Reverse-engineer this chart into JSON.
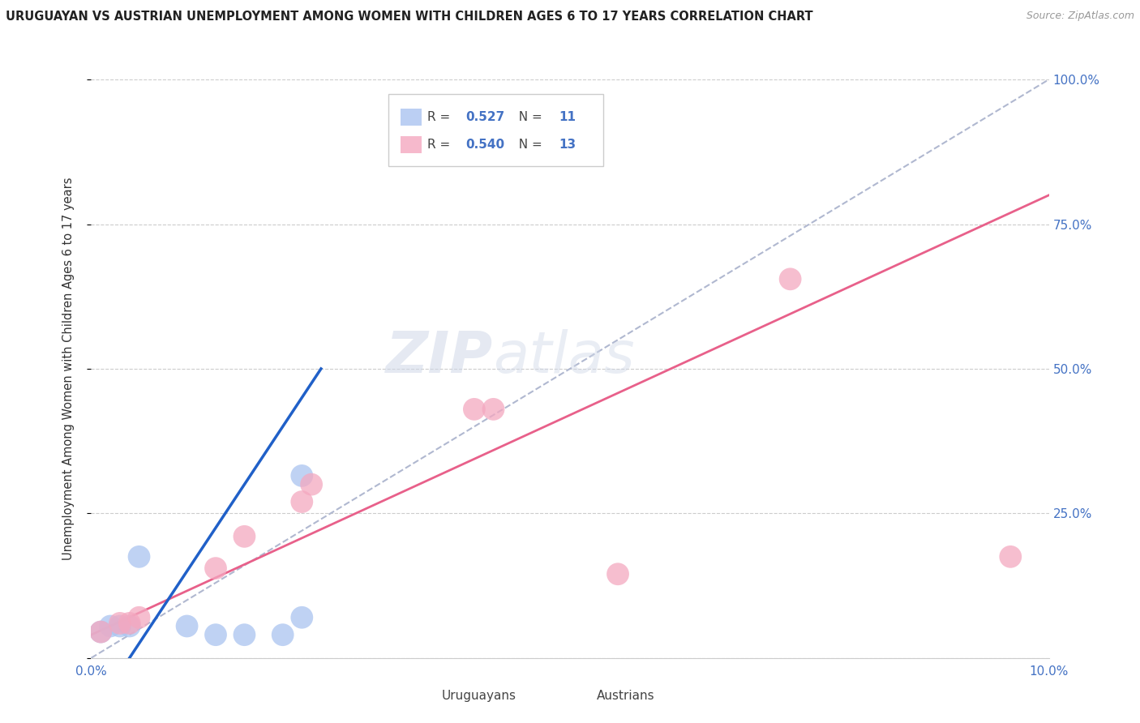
{
  "title": "URUGUAYAN VS AUSTRIAN UNEMPLOYMENT AMONG WOMEN WITH CHILDREN AGES 6 TO 17 YEARS CORRELATION CHART",
  "source": "Source: ZipAtlas.com",
  "ylabel": "Unemployment Among Women with Children Ages 6 to 17 years",
  "x_min": 0.0,
  "x_max": 0.1,
  "y_min": 0.0,
  "y_max": 1.0,
  "x_ticks": [
    0.0,
    0.02,
    0.04,
    0.06,
    0.08,
    0.1
  ],
  "x_tick_labels": [
    "0.0%",
    "",
    "",
    "",
    "",
    "10.0%"
  ],
  "y_ticks": [
    0.0,
    0.25,
    0.5,
    0.75,
    1.0
  ],
  "y_tick_labels_right": [
    "",
    "25.0%",
    "50.0%",
    "75.0%",
    "100.0%"
  ],
  "legend_R_uruguayan": "0.527",
  "legend_N_uruguayan": "11",
  "legend_R_austrian": "0.540",
  "legend_N_austrian": "13",
  "uruguayan_color": "#aac4f0",
  "austrian_color": "#f4a8c0",
  "uruguayan_line_color": "#2060c8",
  "austrian_line_color": "#e8608a",
  "diagonal_color": "#b0b8d0",
  "watermark_top": "ZIP",
  "watermark_bottom": "atlas",
  "uruguayan_points": [
    [
      0.001,
      0.045
    ],
    [
      0.002,
      0.055
    ],
    [
      0.003,
      0.055
    ],
    [
      0.004,
      0.055
    ],
    [
      0.005,
      0.175
    ],
    [
      0.01,
      0.055
    ],
    [
      0.013,
      0.04
    ],
    [
      0.016,
      0.04
    ],
    [
      0.02,
      0.04
    ],
    [
      0.022,
      0.315
    ],
    [
      0.022,
      0.07
    ]
  ],
  "austrian_points": [
    [
      0.001,
      0.045
    ],
    [
      0.003,
      0.06
    ],
    [
      0.004,
      0.06
    ],
    [
      0.005,
      0.07
    ],
    [
      0.013,
      0.155
    ],
    [
      0.016,
      0.21
    ],
    [
      0.022,
      0.27
    ],
    [
      0.023,
      0.3
    ],
    [
      0.04,
      0.43
    ],
    [
      0.042,
      0.43
    ],
    [
      0.055,
      0.145
    ],
    [
      0.073,
      0.655
    ],
    [
      0.096,
      0.175
    ]
  ],
  "uruguayan_line_pts": [
    [
      0.0,
      -0.1
    ],
    [
      0.024,
      0.5
    ]
  ],
  "austrian_line_pts": [
    [
      0.0,
      0.04
    ],
    [
      0.1,
      0.8
    ]
  ]
}
